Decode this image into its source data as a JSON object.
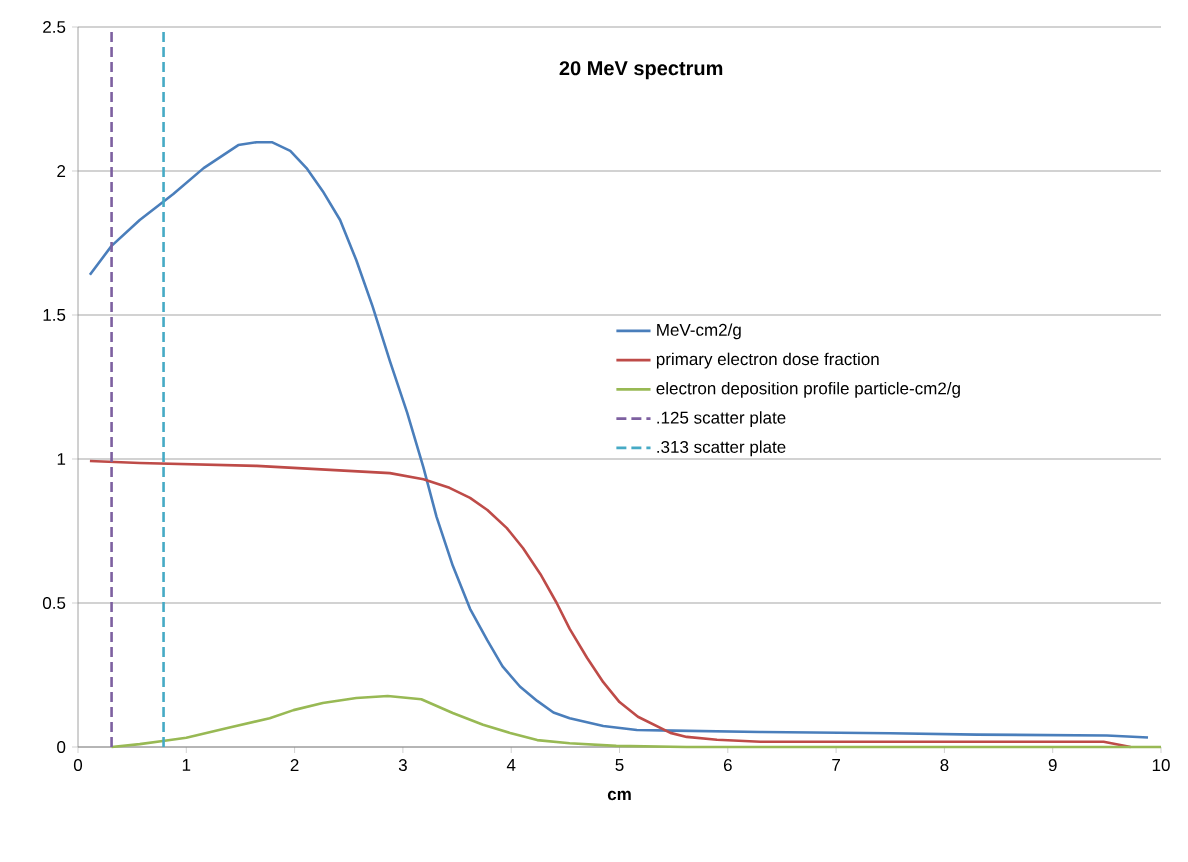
{
  "chart_data": {
    "type": "line",
    "title": "20 MeV spectrum",
    "xlabel": "cm",
    "xlim": [
      0,
      10
    ],
    "ylim": [
      0,
      2.5
    ],
    "xticks": [
      0,
      1,
      2,
      3,
      4,
      5,
      6,
      7,
      8,
      9,
      10
    ],
    "yticks": [
      0,
      0.5,
      1,
      1.5,
      2,
      2.5
    ],
    "grid": "y",
    "legend": "right",
    "line_style": "solid",
    "series": [
      {
        "name": "MeV-cm2/g",
        "color": "#4a7ebb",
        "x": [
          0.11,
          0.31,
          0.57,
          0.88,
          1.16,
          1.48,
          1.65,
          1.79,
          1.96,
          2.11,
          2.26,
          2.42,
          2.57,
          2.72,
          2.88,
          3.04,
          3.19,
          3.31,
          3.46,
          3.62,
          3.78,
          3.92,
          4.08,
          4.24,
          4.39,
          4.54,
          4.85,
          5.16,
          5.5,
          6.3,
          7.5,
          8.3,
          9.5,
          9.88
        ],
        "values": [
          1.64,
          1.74,
          1.83,
          1.92,
          2.01,
          2.09,
          2.1,
          2.1,
          2.07,
          2.01,
          1.93,
          1.83,
          1.69,
          1.53,
          1.34,
          1.16,
          0.97,
          0.8,
          0.63,
          0.48,
          0.37,
          0.28,
          0.21,
          0.16,
          0.12,
          0.1,
          0.073,
          0.059,
          0.057,
          0.052,
          0.048,
          0.043,
          0.04,
          0.033
        ]
      },
      {
        "name": "primary electron dose fraction",
        "color": "#be4b48",
        "x": [
          0.11,
          0.57,
          1.65,
          2.88,
          3.19,
          3.43,
          3.62,
          3.78,
          3.96,
          4.11,
          4.27,
          4.42,
          4.54,
          4.7,
          4.85,
          5.0,
          5.17,
          5.47,
          5.62,
          5.9,
          6.3,
          9.47,
          9.72
        ],
        "values": [
          0.993,
          0.986,
          0.976,
          0.951,
          0.93,
          0.9,
          0.865,
          0.823,
          0.76,
          0.69,
          0.6,
          0.5,
          0.41,
          0.31,
          0.225,
          0.156,
          0.105,
          0.049,
          0.035,
          0.025,
          0.018,
          0.018,
          0
        ]
      },
      {
        "name": "electron deposition profile particle-cm2/g",
        "color": "#98b954",
        "x": [
          0.31,
          0.57,
          0.8,
          1.0,
          1.37,
          1.77,
          1.99,
          2.26,
          2.57,
          2.86,
          3.17,
          3.46,
          3.74,
          3.99,
          4.24,
          4.54,
          4.97,
          5.62,
          10
        ],
        "values": [
          0,
          0.01,
          0.022,
          0.032,
          0.065,
          0.1,
          0.128,
          0.153,
          0.17,
          0.177,
          0.166,
          0.118,
          0.077,
          0.049,
          0.024,
          0.013,
          0.004,
          0,
          0
        ]
      },
      {
        "name": ".125 scatter plate",
        "color": "#7d60a0",
        "line_style": "dashed",
        "x": [
          0.31,
          0.31
        ],
        "values": [
          0,
          2.5
        ]
      },
      {
        "name": ".313 scatter plate",
        "color": "#46aac5",
        "line_style": "dashed",
        "x": [
          0.79,
          0.79
        ],
        "values": [
          0,
          2.5
        ]
      }
    ]
  }
}
